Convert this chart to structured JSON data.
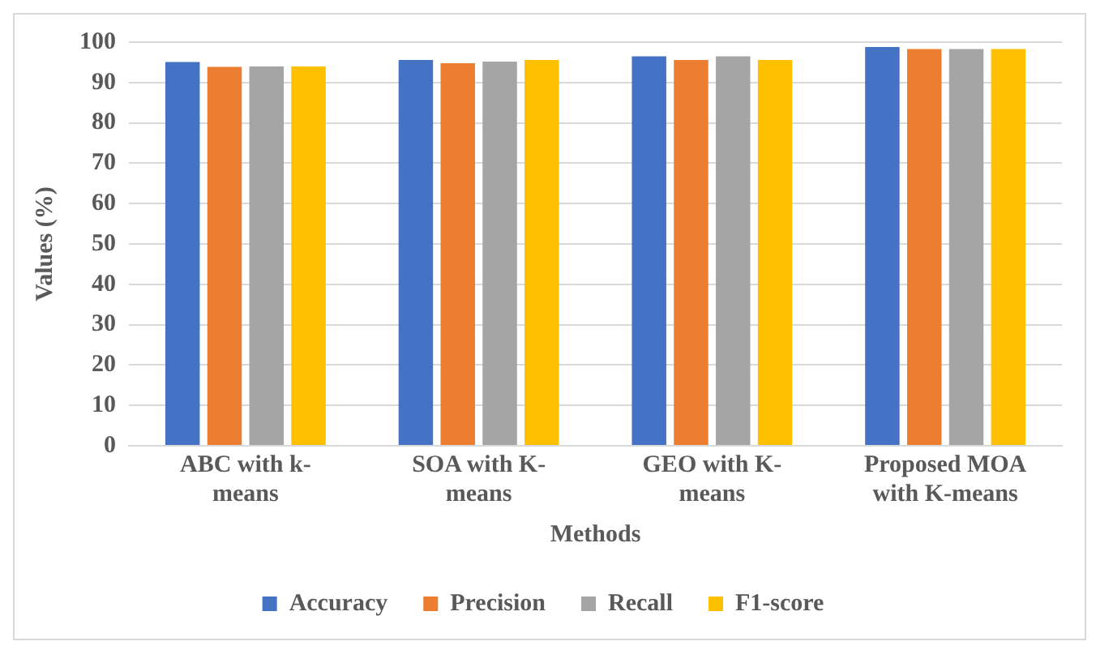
{
  "chart_data": {
    "type": "bar",
    "xlabel": "Methods",
    "ylabel": "Values (%)",
    "categories": [
      "ABC with k-means",
      "SOA with K-means",
      "GEO with K-means",
      "Proposed MOA with K-means"
    ],
    "series": [
      {
        "name": "Accuracy",
        "color": "#4472c4",
        "values": [
          95.1,
          95.6,
          96.5,
          98.8
        ]
      },
      {
        "name": "Precision",
        "color": "#ed7d31",
        "values": [
          93.9,
          94.8,
          95.6,
          98.3
        ]
      },
      {
        "name": "Recall",
        "color": "#a5a5a5",
        "values": [
          94,
          95.2,
          96.5,
          98.3
        ]
      },
      {
        "name": "F1-score",
        "color": "#ffc000",
        "values": [
          94,
          95.6,
          95.6,
          98.3
        ]
      }
    ],
    "ylim": [
      0,
      100
    ],
    "yticks": [
      0,
      10,
      20,
      30,
      40,
      50,
      60,
      70,
      80,
      90,
      100
    ],
    "grid": "y",
    "legend": "bottom"
  }
}
